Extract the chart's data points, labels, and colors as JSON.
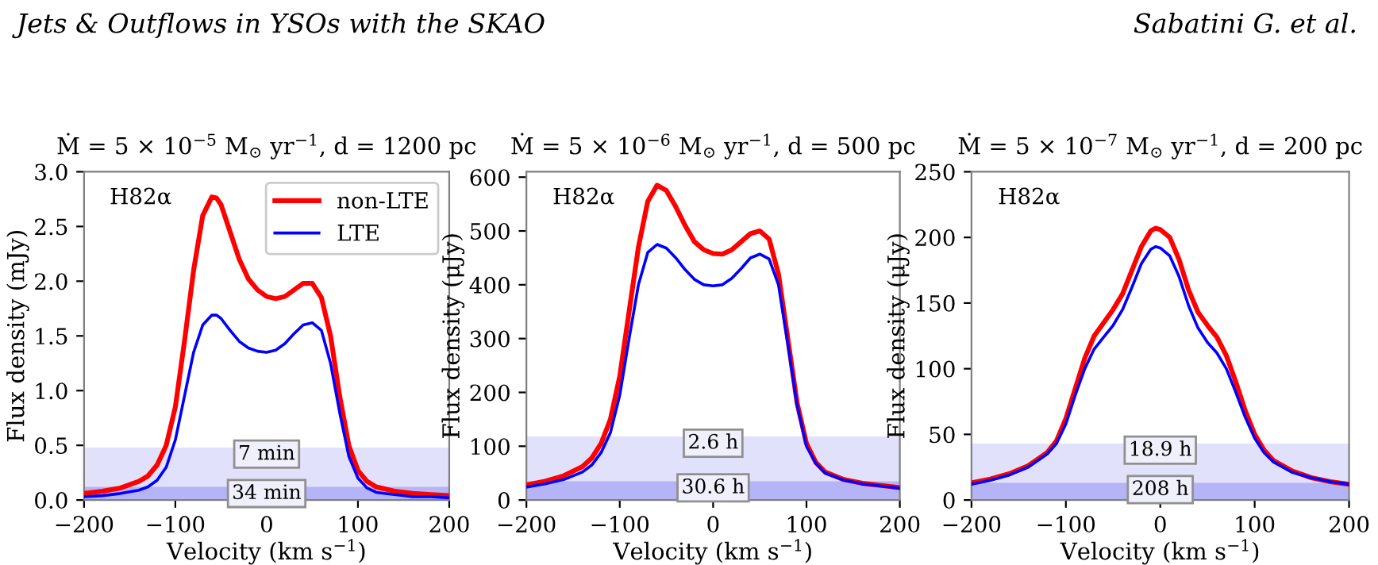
{
  "chart_data": [
    {
      "type": "line",
      "title": "Ṁ = 5 × 10$^{−5}$ M$_{⊙}$ yr$^{−1}$, d = 1200 pc",
      "xlabel": "Velocity (km s$^{−1}$)",
      "ylabel": "Flux density (mJy)",
      "annotations": [
        "H82α",
        "Jets & Outflows in YSOs with the SKAO"
      ],
      "x": [
        -200,
        -180,
        -160,
        -140,
        -130,
        -120,
        -110,
        -100,
        -90,
        -80,
        -70,
        -60,
        -55,
        -50,
        -40,
        -30,
        -20,
        -10,
        0,
        10,
        20,
        30,
        40,
        50,
        60,
        70,
        80,
        90,
        100,
        110,
        120,
        140,
        160,
        180,
        200
      ],
      "series": [
        {
          "name": "non-LTE",
          "color": "#ff0000",
          "values": [
            0.06,
            0.08,
            0.11,
            0.17,
            0.22,
            0.32,
            0.5,
            0.85,
            1.45,
            2.1,
            2.6,
            2.77,
            2.76,
            2.7,
            2.45,
            2.2,
            2.02,
            1.92,
            1.86,
            1.84,
            1.86,
            1.92,
            1.98,
            1.98,
            1.85,
            1.5,
            0.95,
            0.5,
            0.27,
            0.17,
            0.12,
            0.08,
            0.06,
            0.05,
            0.04
          ]
        },
        {
          "name": "LTE",
          "color": "#0000ff",
          "values": [
            0.03,
            0.04,
            0.06,
            0.09,
            0.12,
            0.18,
            0.3,
            0.55,
            0.95,
            1.35,
            1.6,
            1.69,
            1.69,
            1.66,
            1.55,
            1.45,
            1.39,
            1.36,
            1.35,
            1.37,
            1.43,
            1.52,
            1.6,
            1.62,
            1.55,
            1.25,
            0.8,
            0.4,
            0.2,
            0.11,
            0.07,
            0.05,
            0.03,
            0.03,
            0.02
          ]
        }
      ],
      "bands": [
        {
          "axis": "y",
          "from": 0,
          "to": 0.48,
          "label": "7 min",
          "color": "#e1e1fb"
        },
        {
          "axis": "y",
          "from": 0,
          "to": 0.12,
          "label": "34 min",
          "color": "#b4b4f6"
        }
      ],
      "xlim": [
        -200,
        200
      ],
      "xticks": [
        -200,
        -100,
        0,
        100,
        200
      ],
      "ylim": [
        0,
        3
      ],
      "yticks": [
        {
          "value": 0,
          "label": "0.0"
        },
        0.5,
        {
          "value": 1,
          "label": "1.0"
        },
        1.5,
        {
          "value": 2,
          "label": "2.0"
        },
        2.5,
        {
          "value": 3,
          "label": "3.0"
        }
      ],
      "legend": "top right",
      "grid": false,
      "line_style": "solid"
    },
    {
      "type": "line",
      "title": "Ṁ = 5 × 10$^{−6}$ M$_{⊙}$ yr$^{−1}$, d = 500 pc",
      "xlabel": "Velocity (km s$^{−1}$)",
      "ylabel": "Flux density (μJy)",
      "annotations": [
        "H82α"
      ],
      "x": [
        -200,
        -180,
        -160,
        -140,
        -130,
        -120,
        -110,
        -100,
        -90,
        -80,
        -70,
        -60,
        -50,
        -40,
        -30,
        -20,
        -10,
        0,
        10,
        20,
        30,
        40,
        50,
        60,
        70,
        80,
        90,
        100,
        110,
        120,
        140,
        160,
        180,
        200
      ],
      "series": [
        {
          "color": "#ff0000",
          "values": [
            28,
            35,
            45,
            62,
            78,
            105,
            150,
            230,
            350,
            470,
            555,
            585,
            575,
            545,
            510,
            480,
            465,
            458,
            457,
            465,
            480,
            495,
            500,
            485,
            420,
            300,
            180,
            105,
            70,
            52,
            38,
            31,
            27,
            23
          ]
        },
        {
          "color": "#0000ff",
          "values": [
            24,
            30,
            38,
            52,
            65,
            88,
            125,
            195,
            300,
            400,
            460,
            475,
            468,
            450,
            428,
            410,
            400,
            398,
            400,
            412,
            430,
            450,
            457,
            448,
            400,
            290,
            175,
            100,
            68,
            50,
            37,
            30,
            26,
            22
          ]
        }
      ],
      "bands": [
        {
          "axis": "y",
          "from": 0,
          "to": 118,
          "label": "2.6 h",
          "color": "#e1e1fb"
        },
        {
          "axis": "y",
          "from": 0,
          "to": 35,
          "label": "30.6 h",
          "color": "#b4b4f6"
        }
      ],
      "xlim": [
        -200,
        200
      ],
      "xticks": [
        -200,
        -100,
        0,
        100,
        200
      ],
      "ylim": [
        0,
        610
      ],
      "yticks": [
        0,
        100,
        200,
        300,
        400,
        500,
        600
      ],
      "grid": false,
      "line_style": "solid"
    },
    {
      "type": "line",
      "title": "Ṁ = 5 × 10$^{−7}$ M$_{⊙}$ yr$^{−1}$, d = 200 pc",
      "xlabel": "Velocity (km s$^{−1}$)",
      "ylabel": "Flux density (μJy)",
      "annotations": [
        "H82α",
        "Sabatini G. et al."
      ],
      "x": [
        -200,
        -180,
        -160,
        -140,
        -120,
        -110,
        -100,
        -90,
        -80,
        -70,
        -60,
        -50,
        -40,
        -30,
        -20,
        -10,
        -5,
        0,
        10,
        20,
        30,
        40,
        50,
        60,
        70,
        80,
        90,
        100,
        110,
        120,
        140,
        160,
        180,
        200
      ],
      "series": [
        {
          "color": "#ff0000",
          "values": [
            13,
            16,
            20,
            26,
            36,
            45,
            62,
            85,
            108,
            125,
            135,
            145,
            157,
            175,
            193,
            205,
            207,
            206,
            200,
            183,
            160,
            143,
            133,
            124,
            110,
            90,
            68,
            50,
            38,
            30,
            22,
            17,
            14,
            12
          ]
        },
        {
          "color": "#0000ff",
          "values": [
            12,
            15,
            19,
            25,
            35,
            43,
            58,
            80,
            100,
            115,
            124,
            133,
            145,
            162,
            180,
            191,
            193,
            192,
            186,
            170,
            148,
            131,
            120,
            112,
            100,
            82,
            63,
            47,
            36,
            29,
            21,
            17,
            14,
            12
          ]
        }
      ],
      "bands": [
        {
          "axis": "y",
          "from": 0,
          "to": 43,
          "label": "18.9 h",
          "color": "#e1e1fb"
        },
        {
          "axis": "y",
          "from": 0,
          "to": 13,
          "label": "208 h",
          "color": "#b4b4f6"
        }
      ],
      "xlim": [
        -200,
        200
      ],
      "xticks": [
        -200,
        -100,
        0,
        100,
        200
      ],
      "ylim": [
        0,
        250
      ],
      "yticks": [
        0,
        50,
        100,
        150,
        200,
        250
      ],
      "grid": false,
      "line_style": "solid"
    }
  ]
}
